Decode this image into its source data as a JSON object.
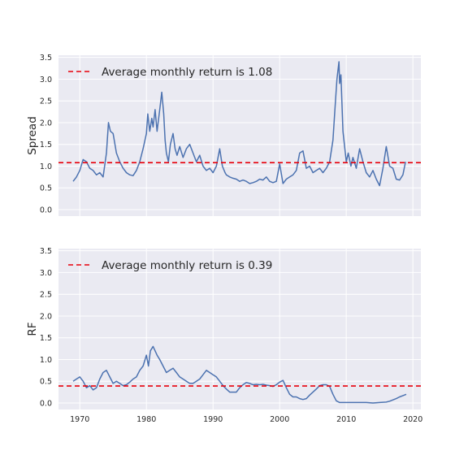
{
  "figure": {
    "background": "#ffffff",
    "axes_facecolor": "#eaeaf2",
    "grid_color": "#ffffff",
    "line_color": "#4c72b0",
    "ref_color": "#e8000b"
  },
  "chart_data": [
    {
      "type": "line",
      "title": "",
      "xlabel": "",
      "ylabel": "Spread",
      "xlim": [
        1966.8,
        2021.2
      ],
      "ylim": [
        -0.15,
        3.55
      ],
      "xticks": [
        1970,
        1980,
        1990,
        2000,
        2010,
        2020
      ],
      "xtick_labels": [],
      "yticks": [
        0.0,
        0.5,
        1.0,
        1.5,
        2.0,
        2.5,
        3.0,
        3.5
      ],
      "ytick_labels": [
        "0.0",
        "0.5",
        "1.0",
        "1.5",
        "2.0",
        "2.5",
        "3.0",
        "3.5"
      ],
      "grid": true,
      "legend": {
        "position": "upper-left",
        "entries": [
          {
            "label": "Average monthly return is 1.08",
            "style": "dashed",
            "color": "#e8000b"
          }
        ]
      },
      "reference_line": {
        "y": 1.08,
        "style": "dashed",
        "color": "#e8000b"
      },
      "series": [
        {
          "name": "",
          "color": "#4c72b0",
          "x": [
            1969.0,
            1969.5,
            1970.0,
            1970.5,
            1971.0,
            1971.5,
            1972.0,
            1972.5,
            1973.0,
            1973.5,
            1974.0,
            1974.3,
            1974.6,
            1975.0,
            1975.5,
            1976.0,
            1976.5,
            1977.0,
            1977.5,
            1978.0,
            1978.5,
            1979.0,
            1979.5,
            1980.0,
            1980.2,
            1980.5,
            1980.8,
            1981.0,
            1981.3,
            1981.6,
            1982.0,
            1982.3,
            1982.6,
            1982.8,
            1983.0,
            1983.3,
            1983.6,
            1984.0,
            1984.3,
            1984.6,
            1985.0,
            1985.5,
            1986.0,
            1986.5,
            1987.0,
            1987.5,
            1988.0,
            1988.5,
            1989.0,
            1989.5,
            1990.0,
            1990.5,
            1991.0,
            1991.4,
            1991.8,
            1992.0,
            1992.5,
            1993.0,
            1993.5,
            1994.0,
            1994.5,
            1995.0,
            1995.5,
            1996.0,
            1996.5,
            1997.0,
            1997.5,
            1998.0,
            1998.5,
            1999.0,
            1999.5,
            2000.0,
            2000.5,
            2001.0,
            2001.5,
            2002.0,
            2002.5,
            2003.0,
            2003.5,
            2004.0,
            2004.5,
            2005.0,
            2005.5,
            2006.0,
            2006.5,
            2007.0,
            2007.5,
            2008.0,
            2008.3,
            2008.6,
            2008.9,
            2009.0,
            2009.2,
            2009.5,
            2010.0,
            2010.3,
            2010.7,
            2011.0,
            2011.5,
            2012.0,
            2012.5,
            2013.0,
            2013.5,
            2014.0,
            2014.5,
            2015.0,
            2015.5,
            2016.0,
            2016.5,
            2017.0,
            2017.5,
            2018.0,
            2018.5,
            2018.9
          ],
          "values": [
            0.65,
            0.75,
            0.9,
            1.15,
            1.1,
            0.95,
            0.9,
            0.8,
            0.85,
            0.75,
            1.3,
            2.0,
            1.8,
            1.75,
            1.3,
            1.1,
            0.95,
            0.85,
            0.8,
            0.78,
            0.9,
            1.1,
            1.4,
            1.75,
            2.2,
            1.8,
            2.1,
            1.9,
            2.3,
            1.8,
            2.3,
            2.7,
            2.2,
            1.6,
            1.3,
            1.1,
            1.5,
            1.75,
            1.4,
            1.25,
            1.45,
            1.2,
            1.4,
            1.5,
            1.3,
            1.1,
            1.25,
            1.0,
            0.9,
            0.95,
            0.85,
            1.0,
            1.4,
            1.0,
            0.85,
            0.8,
            0.75,
            0.72,
            0.7,
            0.65,
            0.68,
            0.65,
            0.6,
            0.62,
            0.65,
            0.7,
            0.68,
            0.75,
            0.65,
            0.62,
            0.65,
            1.05,
            0.6,
            0.7,
            0.75,
            0.8,
            0.9,
            1.3,
            1.35,
            0.95,
            1.0,
            0.85,
            0.9,
            0.95,
            0.85,
            0.95,
            1.1,
            1.6,
            2.3,
            3.0,
            3.4,
            2.9,
            3.1,
            1.8,
            1.1,
            1.3,
            1.0,
            1.2,
            0.95,
            1.4,
            1.1,
            0.85,
            0.75,
            0.9,
            0.7,
            0.55,
            0.95,
            1.45,
            1.0,
            0.95,
            0.7,
            0.68,
            0.8,
            1.1
          ]
        }
      ]
    },
    {
      "type": "line",
      "title": "",
      "xlabel": "",
      "ylabel": "RF",
      "xlim": [
        1966.8,
        2021.2
      ],
      "ylim": [
        -0.15,
        3.55
      ],
      "xticks": [
        1970,
        1980,
        1990,
        2000,
        2010,
        2020
      ],
      "xtick_labels": [
        "1970",
        "1980",
        "1990",
        "2000",
        "2010",
        "2020"
      ],
      "yticks": [
        0.0,
        0.5,
        1.0,
        1.5,
        2.0,
        2.5,
        3.0,
        3.5
      ],
      "ytick_labels": [
        "0.0",
        "0.5",
        "1.0",
        "1.5",
        "2.0",
        "2.5",
        "3.0",
        "3.5"
      ],
      "grid": true,
      "legend": {
        "position": "upper-left",
        "entries": [
          {
            "label": "Average monthly return is 0.39",
            "style": "dashed",
            "color": "#e8000b"
          }
        ]
      },
      "reference_line": {
        "y": 0.39,
        "style": "dashed",
        "color": "#e8000b"
      },
      "series": [
        {
          "name": "",
          "color": "#4c72b0",
          "x": [
            1969.0,
            1969.5,
            1970.0,
            1970.5,
            1971.0,
            1971.5,
            1972.0,
            1972.5,
            1973.0,
            1973.5,
            1974.0,
            1974.5,
            1975.0,
            1975.5,
            1976.0,
            1976.5,
            1977.0,
            1977.5,
            1978.0,
            1978.5,
            1979.0,
            1979.5,
            1980.0,
            1980.3,
            1980.6,
            1981.0,
            1981.3,
            1981.6,
            1982.0,
            1982.5,
            1983.0,
            1983.5,
            1984.0,
            1984.5,
            1985.0,
            1985.5,
            1986.0,
            1986.5,
            1987.0,
            1987.5,
            1988.0,
            1988.5,
            1989.0,
            1989.5,
            1990.0,
            1990.5,
            1991.0,
            1991.5,
            1992.0,
            1992.5,
            1993.0,
            1993.5,
            1994.0,
            1994.5,
            1995.0,
            1995.5,
            1996.0,
            1996.5,
            1997.0,
            1997.5,
            1998.0,
            1998.5,
            1999.0,
            1999.5,
            2000.0,
            2000.5,
            2001.0,
            2001.5,
            2002.0,
            2002.5,
            2003.0,
            2003.5,
            2004.0,
            2004.5,
            2005.0,
            2005.5,
            2006.0,
            2006.5,
            2007.0,
            2007.5,
            2008.0,
            2008.5,
            2009.0,
            2010.0,
            2011.0,
            2012.0,
            2013.0,
            2014.0,
            2015.0,
            2016.0,
            2016.5,
            2017.0,
            2017.5,
            2018.0,
            2018.5,
            2019.0
          ],
          "values": [
            0.5,
            0.55,
            0.6,
            0.5,
            0.35,
            0.4,
            0.3,
            0.35,
            0.55,
            0.7,
            0.75,
            0.6,
            0.45,
            0.5,
            0.45,
            0.4,
            0.42,
            0.48,
            0.55,
            0.6,
            0.75,
            0.85,
            1.1,
            0.85,
            1.2,
            1.3,
            1.2,
            1.1,
            1.0,
            0.85,
            0.7,
            0.75,
            0.8,
            0.7,
            0.6,
            0.55,
            0.5,
            0.45,
            0.45,
            0.5,
            0.55,
            0.65,
            0.75,
            0.7,
            0.65,
            0.6,
            0.5,
            0.4,
            0.32,
            0.25,
            0.25,
            0.25,
            0.35,
            0.42,
            0.47,
            0.45,
            0.42,
            0.43,
            0.42,
            0.43,
            0.41,
            0.4,
            0.38,
            0.42,
            0.48,
            0.52,
            0.35,
            0.2,
            0.14,
            0.14,
            0.1,
            0.08,
            0.1,
            0.18,
            0.25,
            0.32,
            0.4,
            0.42,
            0.42,
            0.38,
            0.2,
            0.05,
            0.01,
            0.01,
            0.01,
            0.01,
            0.01,
            0.0,
            0.01,
            0.02,
            0.04,
            0.07,
            0.1,
            0.14,
            0.17,
            0.2
          ]
        }
      ]
    }
  ]
}
